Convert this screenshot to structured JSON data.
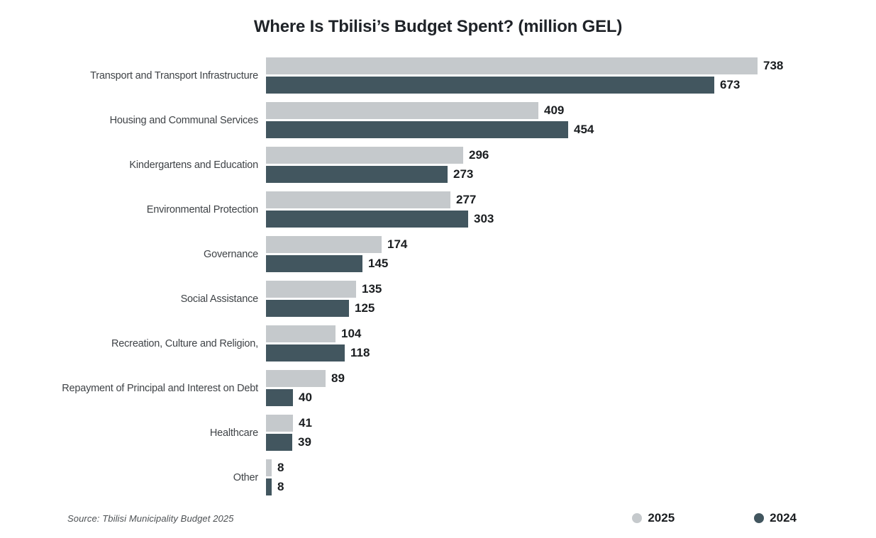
{
  "title": "Where Is Tbilisi’s Budget Spent? (million GEL)",
  "source": "Source: Tbilisi Municipality Budget 2025",
  "colors": {
    "series_2025": "#c5c9cc",
    "series_2024": "#42565f",
    "background": "#ffffff",
    "title_text": "#1f2328",
    "value_text": "#1a1d20",
    "category_text": "#3f4347",
    "source_text": "#4d5154"
  },
  "legend": [
    {
      "label": "2025",
      "color": "#c5c9cc"
    },
    {
      "label": "2024",
      "color": "#42565f"
    }
  ],
  "chart_data": {
    "type": "bar",
    "orientation": "horizontal",
    "title": "Where Is Tbilisi’s Budget Spent? (million GEL)",
    "xlabel": "",
    "ylabel": "",
    "xlim": [
      0,
      786
    ],
    "grid": false,
    "value_labels": true,
    "legend_position": "bottom-right",
    "categories": [
      "Transport and Transport Infrastructure",
      "Housing and Communal Services",
      "Kindergartens and Education",
      "Environmental Protection",
      "Governance",
      "Social Assistance",
      "Recreation, Culture and Religion,",
      "Repayment of Principal and Interest on Debt",
      "Healthcare",
      "Other"
    ],
    "series": [
      {
        "name": "2025",
        "color": "#c5c9cc",
        "values": [
          738,
          409,
          296,
          277,
          174,
          135,
          104,
          89,
          41,
          8
        ]
      },
      {
        "name": "2024",
        "color": "#42565f",
        "values": [
          673,
          454,
          273,
          303,
          145,
          125,
          118,
          40,
          39,
          8
        ]
      }
    ]
  }
}
